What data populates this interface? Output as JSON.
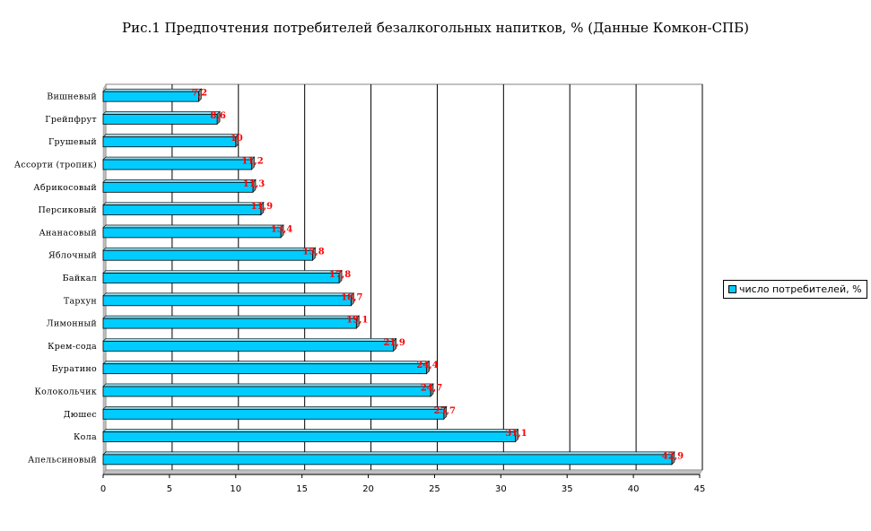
{
  "chart_data": {
    "type": "bar",
    "orientation": "horizontal",
    "title": "Рис.1 Предпочтения потребителей безалкогольных напитков, % (Данные Комкон-СПБ)",
    "categories": [
      "Вишневый",
      "Грейпфрут",
      "Грушевый",
      "Ассорти (тропик)",
      "Абрикосовый",
      "Персиковый",
      "Ананасовый",
      "Яблочный",
      "Байкал",
      "Тархун",
      "Лимонный",
      "Крем-сода",
      "Буратино",
      "Колокольчик",
      "Дюшес",
      "Кола",
      "Апельсиновый"
    ],
    "series": [
      {
        "name": "число потребителей, %",
        "values": [
          7.2,
          8.6,
          10,
          11.2,
          11.3,
          11.9,
          13.4,
          15.8,
          17.8,
          18.7,
          19.1,
          21.9,
          24.4,
          24.7,
          25.7,
          31.1,
          42.9
        ],
        "data_labels": [
          "7,2",
          "8,6",
          "10",
          "11,2",
          "11,3",
          "11,9",
          "13,4",
          "15,8",
          "17,8",
          "18,7",
          "19,1",
          "21,9",
          "24,4",
          "24,7",
          "25,7",
          "31,1",
          "42,9"
        ],
        "color": "#00ccff"
      }
    ],
    "xlim": [
      0,
      45
    ],
    "x_ticks": [
      "0",
      "5",
      "10",
      "15",
      "20",
      "25",
      "30",
      "35",
      "40",
      "45"
    ],
    "grid": "vertical",
    "legend_position": "right",
    "label_color": "#ff0000",
    "bar_color": "#00ccff",
    "shadow_color": "#808080"
  }
}
